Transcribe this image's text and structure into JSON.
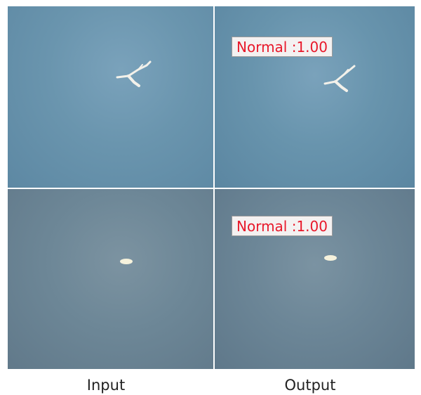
{
  "panels": [
    {
      "role": "input",
      "row": "top"
    },
    {
      "role": "output",
      "row": "top",
      "label": "Normal :1.00"
    },
    {
      "role": "input",
      "row": "bottom"
    },
    {
      "role": "output",
      "row": "bottom",
      "label": "Normal :1.00"
    }
  ],
  "captions": {
    "input": "Input",
    "output": "Output"
  },
  "colors": {
    "label_text": "#e8182a",
    "label_bg": "#f4f1f1"
  }
}
